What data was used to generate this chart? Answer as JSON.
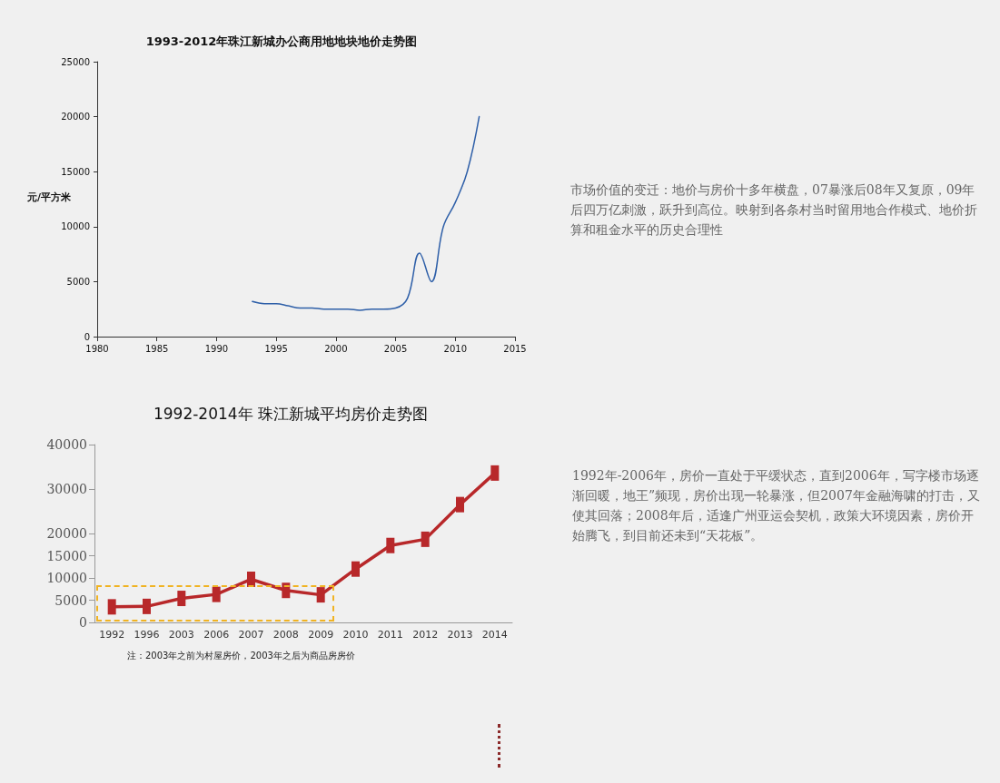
{
  "chart_data": [
    {
      "type": "line",
      "title": "1993-2012年珠江新城办公商用地地块地价走势图",
      "ylabel": "元/平方米",
      "x": [
        1993,
        1994,
        1995,
        1996,
        1997,
        1998,
        1999,
        2000,
        2001,
        2002,
        2003,
        2004,
        2005,
        2006,
        2007,
        2008,
        2009,
        2010,
        2011,
        2012
      ],
      "series": [
        {
          "color": "#2e5fa8",
          "values": [
            3200,
            3000,
            3000,
            2800,
            2600,
            2600,
            2500,
            2500,
            2500,
            2400,
            2500,
            2500,
            2600,
            3500,
            7600,
            5000,
            10000,
            12200,
            15000,
            20000
          ]
        }
      ],
      "xlim": [
        1980,
        2015
      ],
      "xticks": [
        1980,
        1985,
        1990,
        1995,
        2000,
        2005,
        2010,
        2015
      ],
      "ylim": [
        0,
        25000
      ],
      "yticks": [
        0,
        5000,
        10000,
        15000,
        20000,
        25000
      ],
      "grid": false,
      "marker": "none",
      "line_style": "solid",
      "annotations": [
        "市场价值的变迁：地价与房价十多年横盘，07暴涨后08年又复原，09年后四万亿刺激，跃升到高位。映射到各条村当时留用地合作模式、地价折算和租金水平的历史合理性"
      ]
    },
    {
      "type": "line",
      "title": "1992-2014年 珠江新城平均房价走势图",
      "categories": [
        "1992",
        "1996",
        "2003",
        "2006",
        "2007",
        "2008",
        "2009",
        "2010",
        "2011",
        "2012",
        "2013",
        "2014"
      ],
      "series": [
        {
          "color": "#b8282a",
          "values": [
            3500,
            3600,
            5400,
            6300,
            9700,
            7200,
            6200,
            12000,
            17300,
            18700,
            26500,
            33600
          ]
        }
      ],
      "ylim": [
        0,
        40000
      ],
      "yticks": [
        0,
        5000,
        10000,
        15000,
        20000,
        30000,
        40000
      ],
      "grid": false,
      "marker": "square",
      "line_style": "solid",
      "annotations": [
        "注：2003年之前为村屋房价，2003年之后为商品房房价",
        "1992年-2006年，房价一直处于平缓状态，直到2006年，写字楼市场逐渐回暖，地王”频现，房价出现一轮暴涨，但2007年金融海啸的打击，又使其回落；2008年后，适逢广州亚运会契机，政策大环境因素，房价开始腾飞，到目前还未到“天花板”。"
      ]
    }
  ]
}
